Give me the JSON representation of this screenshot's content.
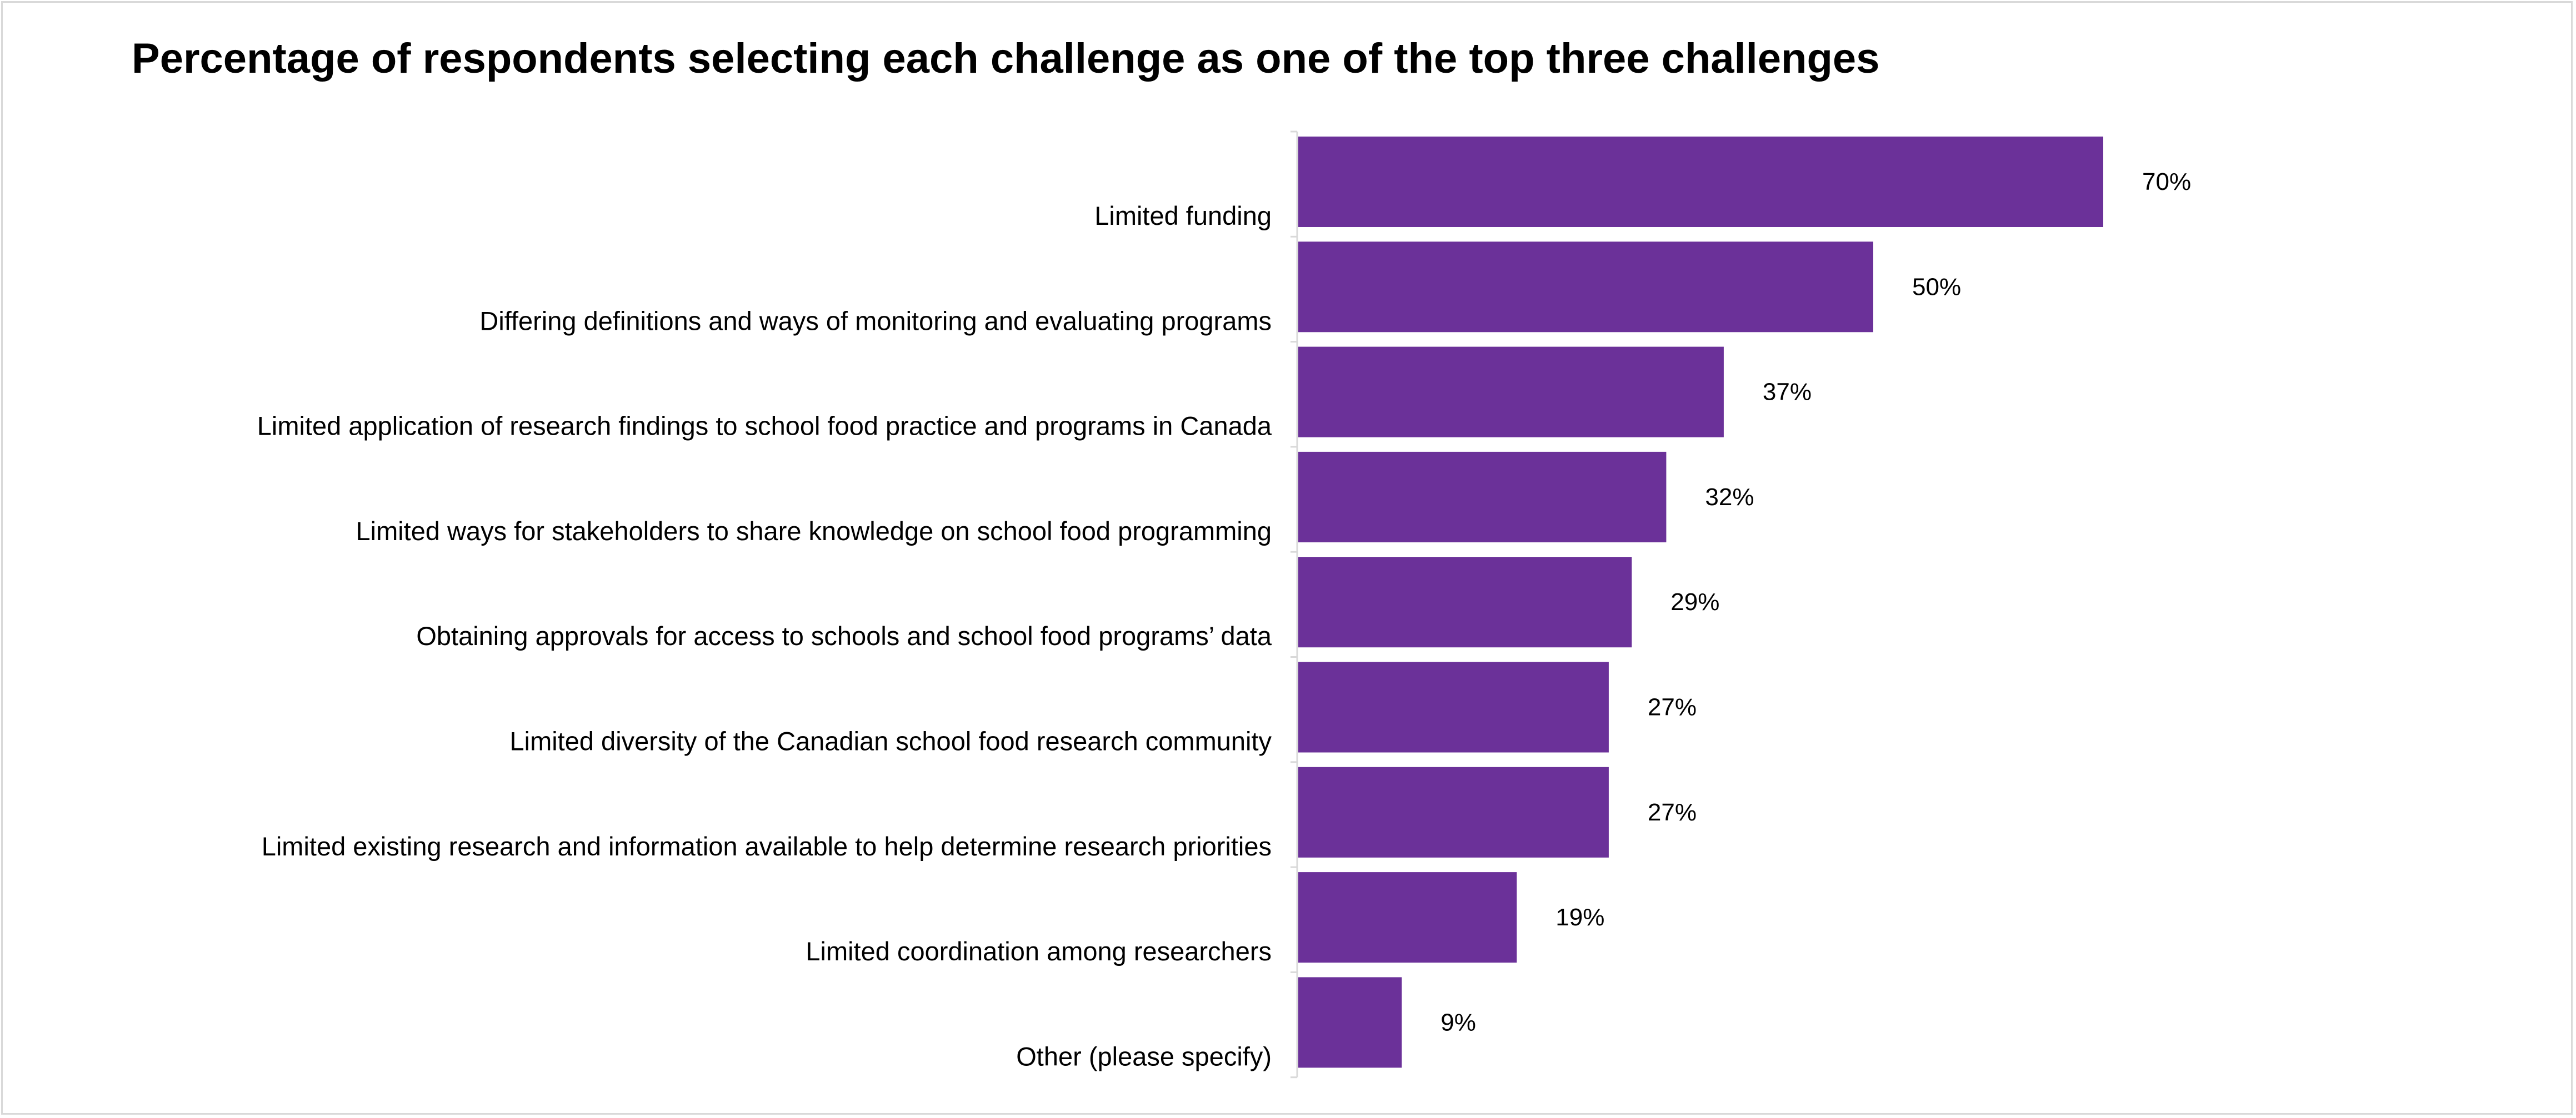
{
  "chart_data": {
    "type": "bar",
    "orientation": "horizontal",
    "title": "Percentage of respondents selecting each challenge as one of the top three challenges",
    "xlabel": "",
    "ylabel": "",
    "categories": [
      "Limited funding",
      "Differing definitions and ways of monitoring and evaluating programs",
      "Limited application of research findings to school food practice and programs in Canada",
      "Limited ways for stakeholders to share knowledge on school food programming",
      "Obtaining approvals for access to schools and school food programs’ data",
      "Limited diversity of the Canadian school food research community",
      "Limited existing research and information available to help determine research priorities",
      "Limited coordination among researchers",
      "Other (please specify)"
    ],
    "values": [
      70,
      50,
      37,
      32,
      29,
      27,
      27,
      19,
      9
    ],
    "value_labels": [
      "70%",
      "50%",
      "37%",
      "32%",
      "29%",
      "27%",
      "27%",
      "19%",
      "9%"
    ],
    "unit": "%",
    "grid": false,
    "legend": "none",
    "colors": {
      "bar": "#6b3199",
      "axis": "#d9d9d9",
      "frame": "#d9d9d9"
    }
  }
}
